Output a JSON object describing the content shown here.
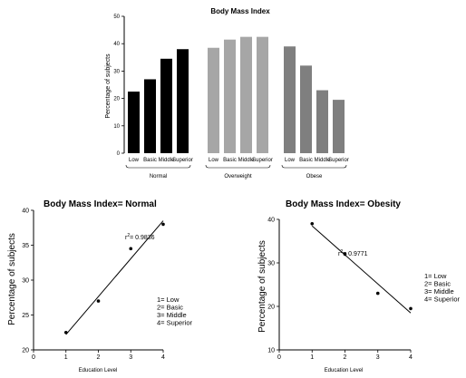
{
  "chart_data": [
    {
      "type": "bar",
      "title": "Body Mass Index",
      "ylabel": "Percentage of subjects",
      "ylim": [
        0,
        50
      ],
      "yticks": [
        0,
        10,
        20,
        30,
        40,
        50
      ],
      "groups": [
        {
          "name": "Normal",
          "color": "#000000",
          "categories": [
            "Low",
            "Basic",
            "Middle",
            "Superior"
          ],
          "values": [
            22.5,
            27,
            34.5,
            38
          ]
        },
        {
          "name": "Overweight",
          "color": "#a6a6a6",
          "categories": [
            "Low",
            "Basic",
            "Middle",
            "Superior"
          ],
          "values": [
            38.5,
            41.5,
            42.5,
            42.5
          ]
        },
        {
          "name": "Obese",
          "color": "#7f7f7f",
          "categories": [
            "Low",
            "Basic",
            "Middle",
            "Superior"
          ],
          "values": [
            39,
            32,
            23,
            19.5
          ]
        }
      ]
    },
    {
      "type": "scatter",
      "title": "Body Mass Index= Normal",
      "xlabel": "Education Level",
      "ylabel": "Percentage of subjects",
      "xlim": [
        0,
        4
      ],
      "ylim": [
        20,
        40
      ],
      "xticks": [
        0,
        1,
        2,
        3,
        4
      ],
      "yticks": [
        20,
        25,
        30,
        35,
        40
      ],
      "x": [
        1,
        2,
        3,
        4
      ],
      "y": [
        22.5,
        27,
        34.5,
        38
      ],
      "fit": {
        "x": [
          1,
          4
        ],
        "y": [
          22.2,
          38.5
        ]
      },
      "r2_prefix": "r",
      "r2_sup": "2",
      "r2_value": "= 0.9836",
      "legend": [
        "1= Low",
        "2= Basic",
        "3= Middle",
        "4= Superior"
      ]
    },
    {
      "type": "scatter",
      "title": "Body Mass Index= Obesity",
      "xlabel": "Education Level",
      "ylabel": "Percentage of subjects",
      "xlim": [
        0,
        4
      ],
      "ylim": [
        10,
        40
      ],
      "xticks": [
        0,
        1,
        2,
        3,
        4
      ],
      "yticks": [
        10,
        20,
        30,
        40
      ],
      "x": [
        1,
        2,
        3,
        4
      ],
      "y": [
        39,
        32,
        23,
        19.5
      ],
      "fit": {
        "x": [
          1,
          4
        ],
        "y": [
          38.5,
          18.5
        ]
      },
      "r2_prefix": "r",
      "r2_sup": "2",
      "r2_value": "= 0.9771",
      "legend": [
        "1= Low",
        "2= Basic",
        "3= Middle",
        "4= Superior"
      ]
    }
  ]
}
